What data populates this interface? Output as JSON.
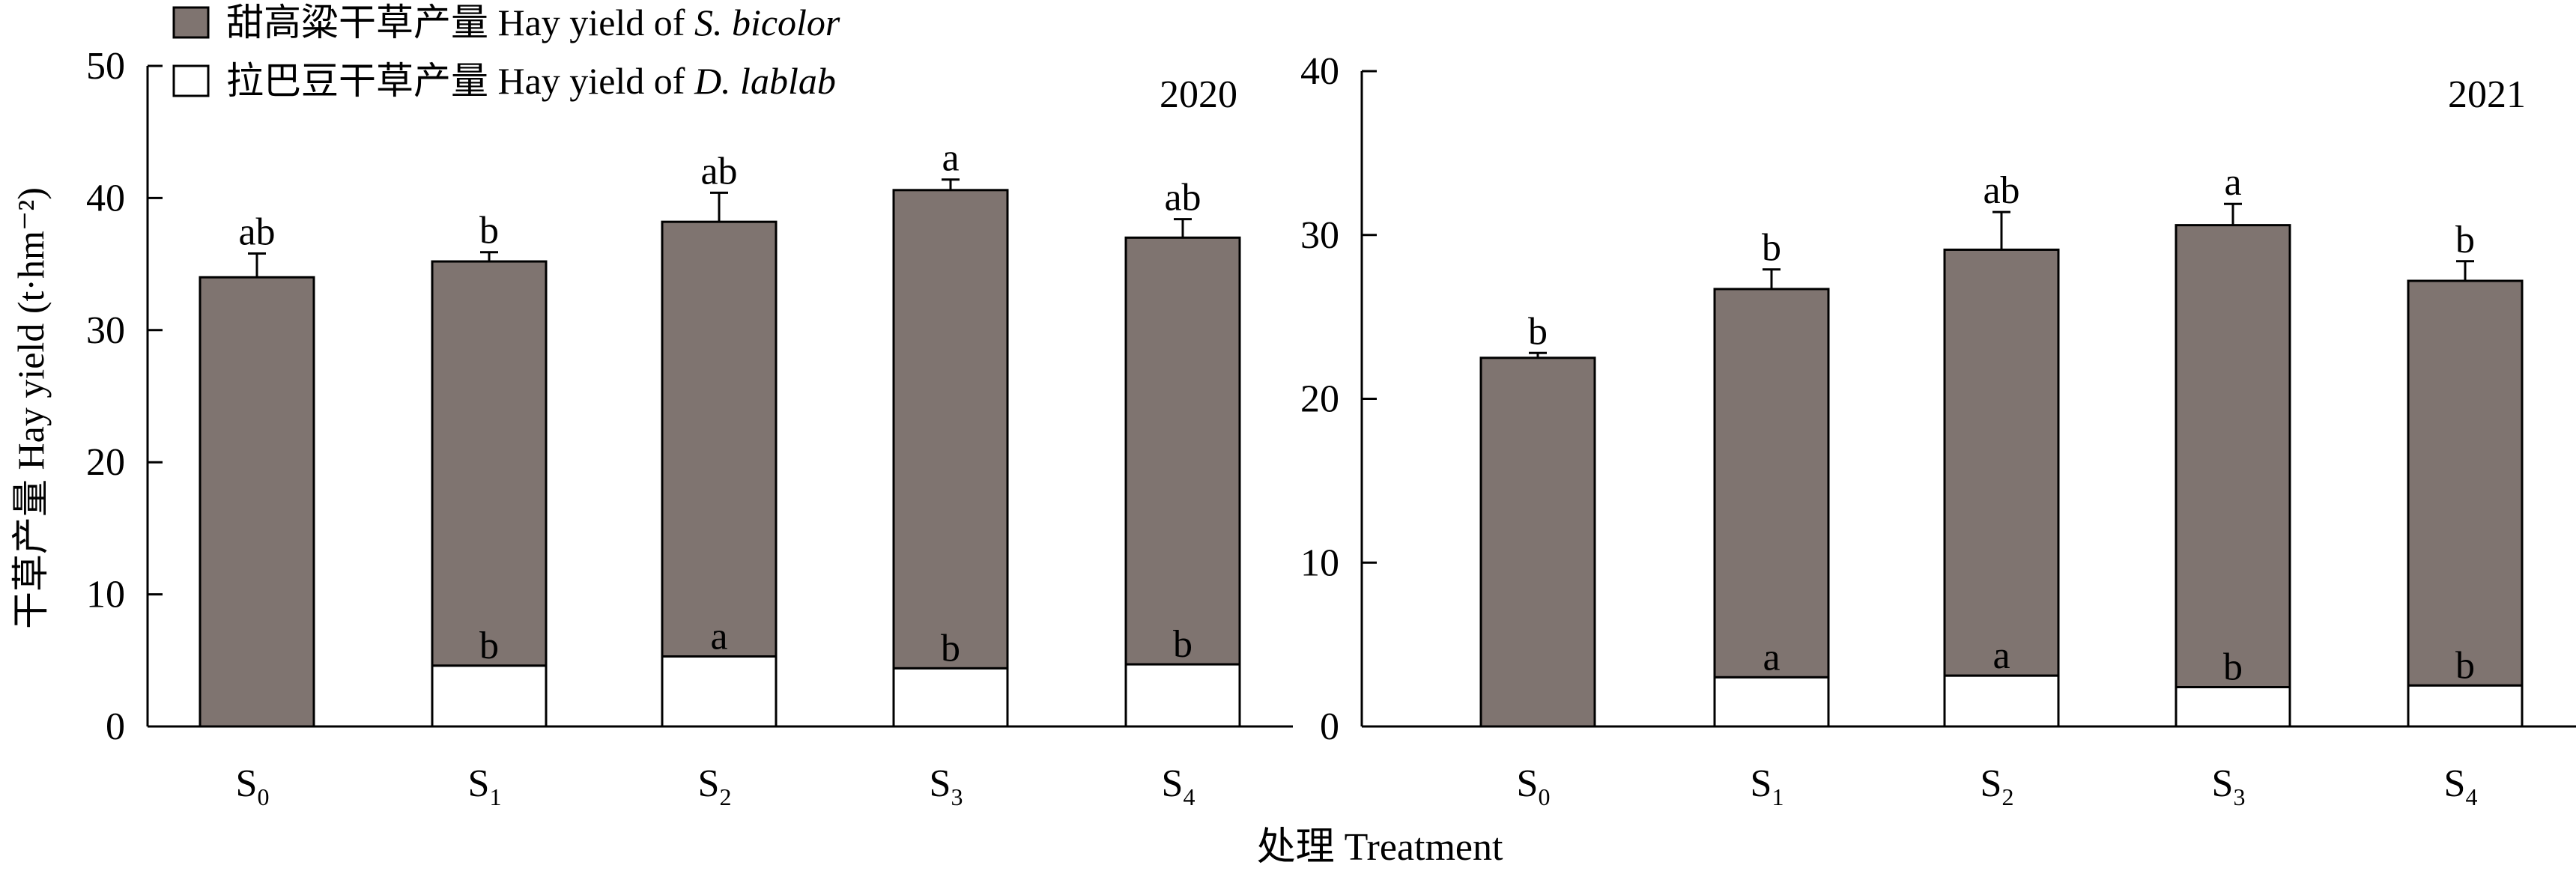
{
  "legend": [
    {
      "name": "甜高粱干草产量 Hay yield of ",
      "italic": "S. bicolor",
      "color": "#7f7470"
    },
    {
      "name": "拉巴豆干草产量 Hay yield of ",
      "italic": "D. lablab",
      "color": "#ffffff"
    }
  ],
  "ylabel": "干草产量 Hay yield (t·hm⁻²)",
  "xlabel": "处理 Treatment",
  "chart_data": [
    {
      "type": "bar",
      "title": "2020",
      "categories": [
        "S0",
        "S1",
        "S2",
        "S3",
        "S4"
      ],
      "tick_labels": [
        {
          "main": "S",
          "sub": "0"
        },
        {
          "main": "S",
          "sub": "1"
        },
        {
          "main": "S",
          "sub": "2"
        },
        {
          "main": "S",
          "sub": "3"
        },
        {
          "main": "S",
          "sub": "4"
        }
      ],
      "ylim": [
        0,
        50
      ],
      "yticks": [
        0,
        10,
        20,
        30,
        40,
        50
      ],
      "series": [
        {
          "name": "Hay yield of S. bicolor",
          "values": [
            34.0,
            35.2,
            38.2,
            40.6,
            37.0
          ],
          "errors": [
            1.8,
            0.7,
            2.2,
            0.8,
            1.4
          ],
          "labels": [
            "ab",
            "b",
            "ab",
            "a",
            "ab"
          ],
          "color": "#7f7470"
        },
        {
          "name": "Hay yield of D. lablab",
          "values": [
            0,
            4.6,
            5.3,
            4.4,
            4.7
          ],
          "labels": [
            "",
            "b",
            "a",
            "b",
            "b"
          ],
          "color": "#ffffff"
        }
      ]
    },
    {
      "type": "bar",
      "title": "2021",
      "categories": [
        "S0",
        "S1",
        "S2",
        "S3",
        "S4"
      ],
      "tick_labels": [
        {
          "main": "S",
          "sub": "0"
        },
        {
          "main": "S",
          "sub": "1"
        },
        {
          "main": "S",
          "sub": "2"
        },
        {
          "main": "S",
          "sub": "3"
        },
        {
          "main": "S",
          "sub": "4"
        }
      ],
      "ylim": [
        0,
        40
      ],
      "yticks": [
        0,
        10,
        20,
        30,
        40
      ],
      "series": [
        {
          "name": "Hay yield of S. bicolor",
          "values": [
            22.5,
            26.7,
            29.1,
            30.6,
            27.2
          ],
          "errors": [
            0.3,
            1.2,
            2.3,
            1.3,
            1.2
          ],
          "labels": [
            "b",
            "b",
            "ab",
            "a",
            "b"
          ],
          "color": "#7f7470"
        },
        {
          "name": "Hay yield of D. lablab",
          "values": [
            0,
            3.0,
            3.1,
            2.4,
            2.5
          ],
          "labels": [
            "",
            "a",
            "a",
            "b",
            "b"
          ],
          "color": "#ffffff"
        }
      ]
    }
  ]
}
